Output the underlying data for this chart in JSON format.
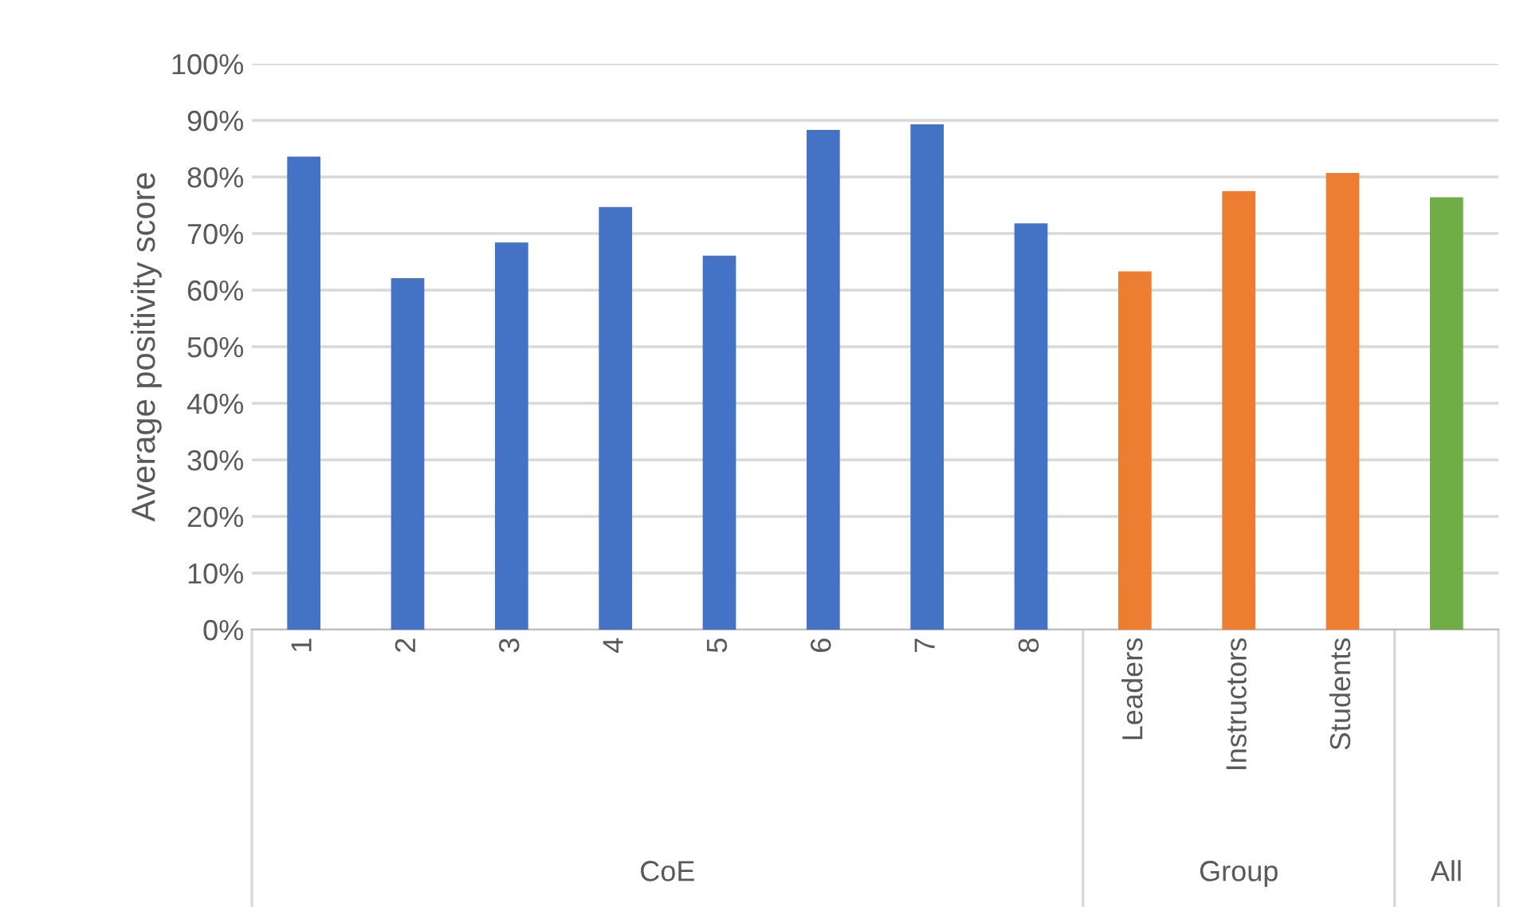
{
  "chart_data": {
    "type": "bar",
    "ylabel": "Average positivity score",
    "categories": [
      "1",
      "2",
      "3",
      "4",
      "5",
      "6",
      "7",
      "8",
      "Leaders",
      "Instructors",
      "Students",
      null
    ],
    "values": [
      83.6,
      62.1,
      68.4,
      74.7,
      66.1,
      88.3,
      89.3,
      71.8,
      63.3,
      77.5,
      80.7,
      76.4
    ],
    "colors": [
      "#4472c4",
      "#4472c4",
      "#4472c4",
      "#4472c4",
      "#4472c4",
      "#4472c4",
      "#4472c4",
      "#4472c4",
      "#ed7d31",
      "#ed7d31",
      "#ed7d31",
      "#70ad47"
    ],
    "annotations": [
      "CoE",
      "Group",
      "All"
    ],
    "ylim": [
      0,
      100
    ],
    "yticks": [
      {
        "value": 0,
        "label": "0%"
      },
      {
        "value": 10,
        "label": "10%"
      },
      {
        "value": 20,
        "label": "20%"
      },
      {
        "value": 30,
        "label": "30%"
      },
      {
        "value": 40,
        "label": "40%"
      },
      {
        "value": 50,
        "label": "50%"
      },
      {
        "value": 60,
        "label": "60%"
      },
      {
        "value": 70,
        "label": "70%"
      },
      {
        "value": 80,
        "label": "80%"
      },
      {
        "value": 90,
        "label": "90%"
      },
      {
        "value": 100,
        "label": "100%"
      }
    ],
    "grid": "y"
  }
}
